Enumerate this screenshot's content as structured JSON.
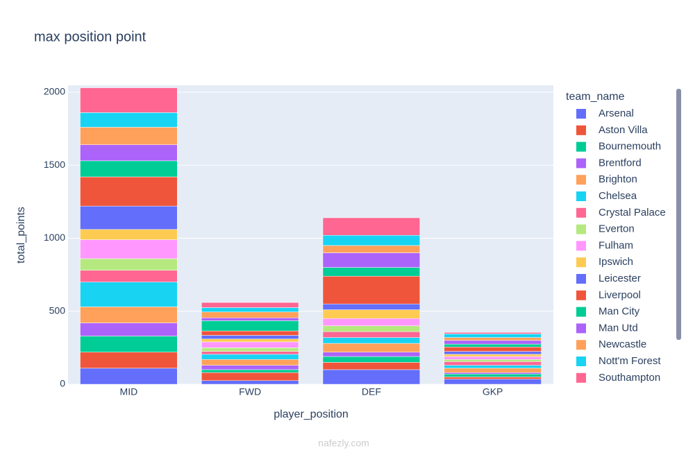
{
  "chart_data": {
    "type": "bar",
    "barmode": "stack",
    "title": "max position point",
    "x_label": "player_position",
    "y_label": "total_points",
    "categories": [
      "MID",
      "FWD",
      "DEF",
      "GKP"
    ],
    "ylim": [
      0,
      2047
    ],
    "yticks": [
      0,
      500,
      1000,
      1500,
      2000
    ],
    "grid": true,
    "legend_title": "team_name",
    "legend_position": "right",
    "series": [
      {
        "name": "Arsenal",
        "color": "#636efa",
        "values": [
          110,
          25,
          100,
          35
        ]
      },
      {
        "name": "Aston Villa",
        "color": "#EF553B",
        "values": [
          110,
          55,
          50,
          15
        ]
      },
      {
        "name": "Bournemouth",
        "color": "#00cc96",
        "values": [
          110,
          20,
          40,
          20
        ]
      },
      {
        "name": "Brentford",
        "color": "#ab63fa",
        "values": [
          90,
          30,
          30,
          10
        ]
      },
      {
        "name": "Brighton",
        "color": "#FFA15A",
        "values": [
          110,
          40,
          60,
          30
        ]
      },
      {
        "name": "Chelsea",
        "color": "#19d3f3",
        "values": [
          170,
          35,
          40,
          20
        ]
      },
      {
        "name": "Crystal Palace",
        "color": "#FF6692",
        "values": [
          80,
          20,
          40,
          25
        ]
      },
      {
        "name": "Everton",
        "color": "#B6E880",
        "values": [
          80,
          25,
          40,
          15
        ]
      },
      {
        "name": "Fulham",
        "color": "#FF97FF",
        "values": [
          130,
          40,
          50,
          20
        ]
      },
      {
        "name": "Ipswich",
        "color": "#FECB52",
        "values": [
          70,
          20,
          60,
          15
        ]
      },
      {
        "name": "Leicester",
        "color": "#636efa",
        "values": [
          160,
          25,
          40,
          20
        ]
      },
      {
        "name": "Liverpool",
        "color": "#EF553B",
        "values": [
          200,
          30,
          190,
          30
        ]
      },
      {
        "name": "Man City",
        "color": "#00cc96",
        "values": [
          110,
          70,
          60,
          20
        ]
      },
      {
        "name": "Man Utd",
        "color": "#ab63fa",
        "values": [
          110,
          20,
          100,
          25
        ]
      },
      {
        "name": "Newcastle",
        "color": "#FFA15A",
        "values": [
          120,
          40,
          50,
          20
        ]
      },
      {
        "name": "Nott'm Forest",
        "color": "#19d3f3",
        "values": [
          100,
          30,
          70,
          25
        ]
      },
      {
        "name": "Southampton",
        "color": "#FF6692",
        "values": [
          170,
          35,
          120,
          10
        ]
      }
    ],
    "watermark": "nafezly.com"
  }
}
